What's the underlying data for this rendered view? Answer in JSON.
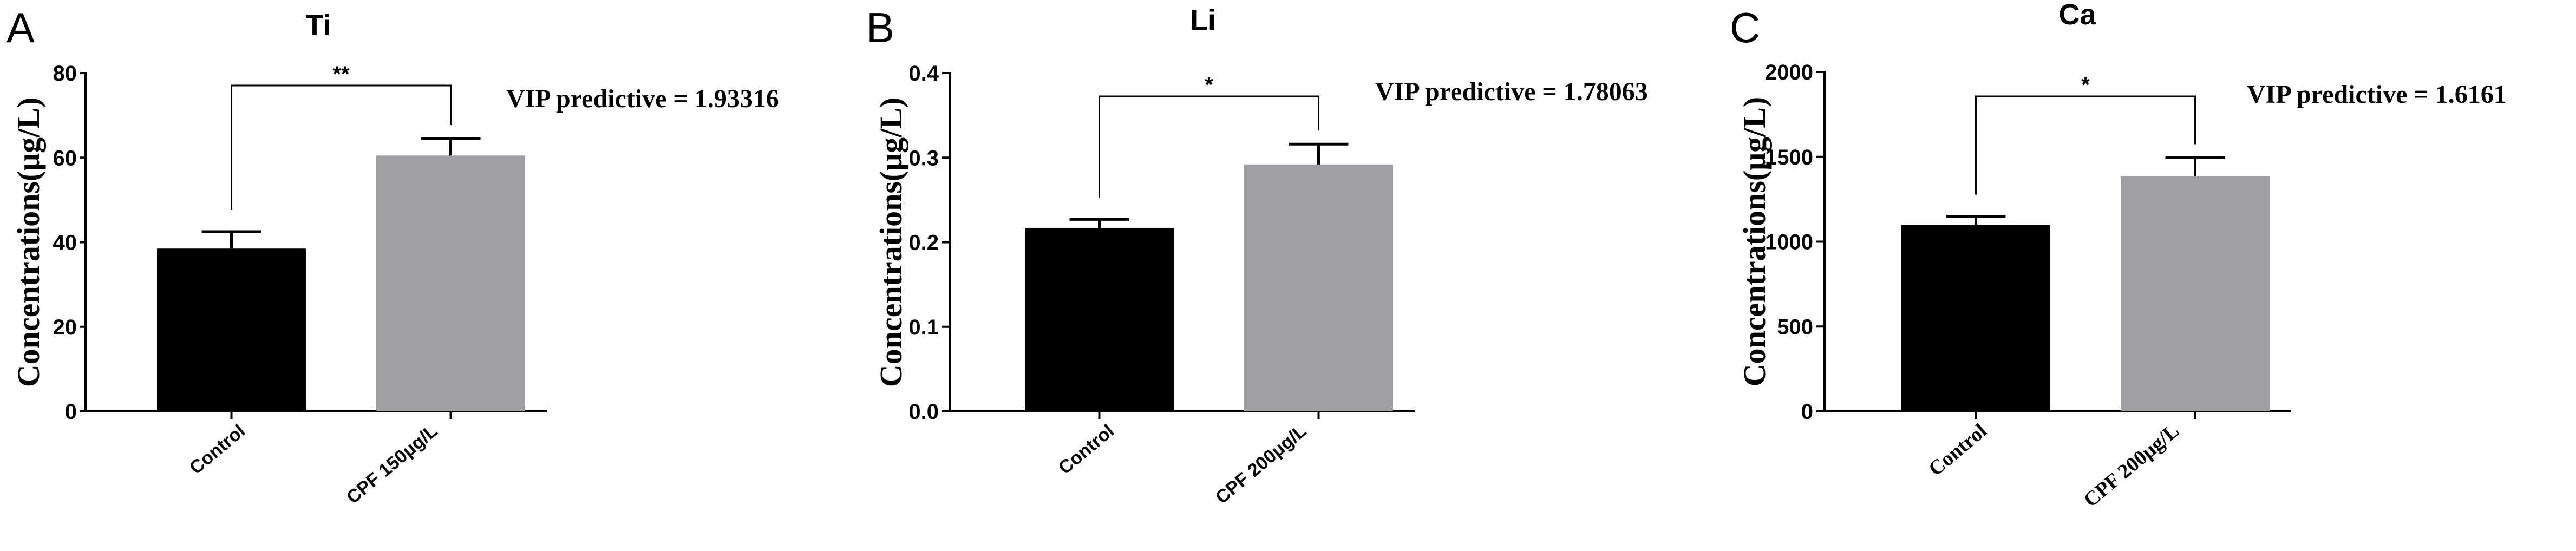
{
  "chart_data": [
    {
      "type": "bar",
      "panel_letter": "A",
      "title": "Ti",
      "ylabel": "Concentrations(μg/L)",
      "xlabel": "",
      "categories": [
        "Control",
        "CPF 150μg/L"
      ],
      "values": [
        38.5,
        60.5
      ],
      "errors": [
        4.0,
        4.0
      ],
      "bar_colors": [
        "#000000",
        "#a0a0a4"
      ],
      "ylim": [
        0,
        80
      ],
      "yticks": [
        0,
        20,
        40,
        60,
        80
      ],
      "ytick_labels": [
        "0",
        "20",
        "40",
        "60",
        "80"
      ],
      "significance": "**",
      "annotation": "VIP predictive = 1.93316",
      "grid": false
    },
    {
      "type": "bar",
      "panel_letter": "B",
      "title": "Li",
      "ylabel": "Concentrations(μg/L)",
      "xlabel": "",
      "categories": [
        "Control",
        "CPF 200μg/L"
      ],
      "values": [
        0.217,
        0.292
      ],
      "errors": [
        0.01,
        0.024
      ],
      "bar_colors": [
        "#000000",
        "#a0a0a4"
      ],
      "ylim": [
        0,
        0.4
      ],
      "yticks": [
        0,
        0.1,
        0.2,
        0.3,
        0.4
      ],
      "ytick_labels": [
        "0.0",
        "0.1",
        "0.2",
        "0.3",
        "0.4"
      ],
      "significance": "*",
      "annotation": "VIP predictive = 1.78063",
      "grid": false
    },
    {
      "type": "bar",
      "panel_letter": "C",
      "title": "Ca",
      "ylabel": "Concentrations(μg/L)",
      "xlabel": "",
      "categories": [
        "Control",
        "CPF 200μg/L"
      ],
      "values": [
        1100,
        1385
      ],
      "errors": [
        50,
        110
      ],
      "bar_colors": [
        "#000000",
        "#a0a0a4"
      ],
      "ylim": [
        0,
        2000
      ],
      "yticks": [
        0,
        500,
        1000,
        1500,
        2000
      ],
      "ytick_labels": [
        "0",
        "500",
        "1000",
        "1500",
        "2000"
      ],
      "significance": "*",
      "annotation": "VIP predictive = 1.6161",
      "grid": false
    }
  ]
}
